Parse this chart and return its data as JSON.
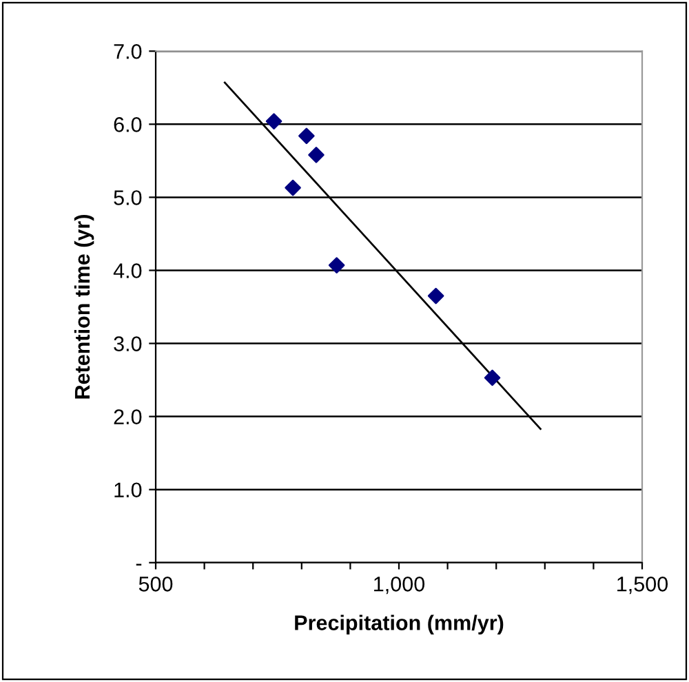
{
  "chart_data": {
    "type": "scatter",
    "xlabel": "Precipitation (mm/yr)",
    "ylabel": "Retention time (yr)",
    "xlim": [
      500,
      1500
    ],
    "xticks": [
      {
        "value": 500,
        "label": "500"
      },
      {
        "value": 600,
        "label": null
      },
      {
        "value": 700,
        "label": null
      },
      {
        "value": 800,
        "label": null
      },
      {
        "value": 900,
        "label": null
      },
      {
        "value": 1000,
        "label": "1,000"
      },
      {
        "value": 1100,
        "label": null
      },
      {
        "value": 1200,
        "label": null
      },
      {
        "value": 1300,
        "label": null
      },
      {
        "value": 1400,
        "label": null
      },
      {
        "value": 1500,
        "label": "1,500"
      }
    ],
    "ylim": [
      0,
      7
    ],
    "yticks": [
      {
        "value": 0,
        "label": "-"
      },
      {
        "value": 1,
        "label": "1.0"
      },
      {
        "value": 2,
        "label": "2.0"
      },
      {
        "value": 3,
        "label": "3.0"
      },
      {
        "value": 4,
        "label": "4.0"
      },
      {
        "value": 5,
        "label": "5.0"
      },
      {
        "value": 6,
        "label": "6.0"
      },
      {
        "value": 7,
        "label": "7.0"
      }
    ],
    "grid": "y",
    "marker": "diamond",
    "series": [
      {
        "color": "#000080",
        "x": [
          743,
          810,
          830,
          782,
          872,
          1076,
          1192
        ],
        "values": [
          6.04,
          5.84,
          5.58,
          5.13,
          4.07,
          3.65,
          2.53
        ]
      },
      {
        "type": "line",
        "color": "#000000",
        "marker": "none",
        "x": [
          642,
          1291
        ],
        "values": [
          6.57,
          1.83
        ]
      }
    ]
  }
}
